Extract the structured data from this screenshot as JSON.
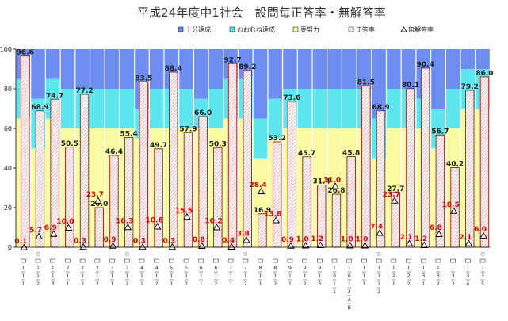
{
  "chart_data": {
    "type": "bar",
    "title": "平成24年度中1社会　設問毎正答率・無解答率",
    "ylim": [
      0,
      100
    ],
    "yticks": [
      0,
      20,
      40,
      60,
      80,
      100
    ],
    "grid": false,
    "legend_position": "top-right",
    "legend": [
      {
        "label": "十分達成",
        "color": "#6d8ef0",
        "symbol": "square"
      },
      {
        "label": "おおむね達成",
        "color": "#5ee6ee",
        "symbol": "square"
      },
      {
        "label": "要努力",
        "color": "#fafaa0",
        "symbol": "square"
      },
      {
        "label": "正答率",
        "color": "#f4c4c4",
        "symbol": "square"
      },
      {
        "label": "無解答率",
        "color": "#ffffff",
        "symbol": "triangle"
      }
    ],
    "bands": {
      "description_colors": {
        "top": "#6d8ef0",
        "middle": "#5ee6ee",
        "bottom": "#fafaa0"
      },
      "boundaries": [
        [
          65,
          85
        ],
        [
          50,
          75
        ],
        [
          65,
          85
        ],
        [
          60,
          80
        ],
        [
          60,
          80
        ],
        [
          60,
          80
        ],
        [
          60,
          80
        ],
        [
          60,
          80
        ],
        [
          55,
          70
        ],
        [
          60,
          80
        ],
        [
          60,
          80
        ],
        [
          60,
          80
        ],
        [
          60,
          75
        ],
        [
          60,
          80
        ],
        [
          65,
          85
        ],
        [
          65,
          85
        ],
        [
          45,
          65
        ],
        [
          55,
          75
        ],
        [
          60,
          80
        ],
        [
          60,
          80
        ],
        [
          60,
          80
        ],
        [
          60,
          80
        ],
        [
          60,
          80
        ],
        [
          60,
          80
        ],
        [
          45,
          65
        ],
        [
          60,
          80
        ],
        [
          60,
          80
        ],
        [
          60,
          75
        ],
        [
          50,
          70
        ],
        [
          60,
          80
        ],
        [
          70,
          90
        ],
        [
          70,
          90
        ]
      ]
    },
    "categories": [
      {
        "marker": "",
        "chars": [
          "1",
          "1",
          "1"
        ]
      },
      {
        "marker": "○",
        "chars": [
          "1",
          "1",
          "2"
        ]
      },
      {
        "marker": "",
        "chars": [
          "1",
          "1",
          "3"
        ]
      },
      {
        "marker": "",
        "chars": [
          "2",
          "1",
          "1"
        ]
      },
      {
        "marker": "",
        "chars": [
          "2",
          "1",
          "2"
        ]
      },
      {
        "marker": "",
        "chars": [
          "2",
          "1",
          "3"
        ]
      },
      {
        "marker": "",
        "chars": [
          "3",
          "1",
          "1"
        ]
      },
      {
        "marker": "○",
        "chars": [
          "3",
          "1",
          "2"
        ]
      },
      {
        "marker": "",
        "chars": [
          "4",
          "1",
          "1"
        ]
      },
      {
        "marker": "",
        "chars": [
          "4",
          "1",
          "2"
        ]
      },
      {
        "marker": "",
        "chars": [
          "5",
          "1",
          "1"
        ]
      },
      {
        "marker": "",
        "chars": [
          "5",
          "1",
          "2"
        ]
      },
      {
        "marker": "",
        "chars": [
          "6",
          "1",
          "1"
        ]
      },
      {
        "marker": "",
        "chars": [
          "6",
          "1",
          "2"
        ]
      },
      {
        "marker": "",
        "chars": [
          "7",
          "1",
          "1"
        ]
      },
      {
        "marker": "○",
        "chars": [
          "7",
          "1",
          "2"
        ]
      },
      {
        "marker": "",
        "chars": [
          "8",
          "1",
          "1"
        ]
      },
      {
        "marker": "",
        "chars": [
          "8",
          "1",
          "2"
        ]
      },
      {
        "marker": "",
        "chars": [
          "9",
          "1",
          "1"
        ]
      },
      {
        "marker": "",
        "chars": [
          "9",
          "1",
          "2"
        ]
      },
      {
        "marker": "",
        "chars": [
          "9",
          "1",
          "3"
        ]
      },
      {
        "marker": "",
        "chars": [
          "1",
          "0",
          "1",
          "1"
        ]
      },
      {
        "marker": "",
        "chars": [
          "1",
          "0",
          "1",
          "2",
          "A",
          "B"
        ]
      },
      {
        "marker": "",
        "chars": [
          "1",
          "1",
          "1"
        ]
      },
      {
        "marker": "○",
        "chars": [
          "1",
          "1",
          "1",
          "2"
        ]
      },
      {
        "marker": "",
        "chars": [
          "1",
          "2",
          "1"
        ]
      },
      {
        "marker": "",
        "chars": [
          "1",
          "2",
          "2"
        ]
      },
      {
        "marker": "",
        "chars": [
          "1",
          "3",
          "1"
        ]
      },
      {
        "marker": "",
        "chars": [
          "1",
          "3",
          "2"
        ]
      },
      {
        "marker": "",
        "chars": [
          "1",
          "3",
          "3"
        ]
      },
      {
        "marker": "",
        "chars": [
          "1",
          "3",
          "4"
        ]
      },
      {
        "marker": "○",
        "chars": [
          "1",
          "3",
          "5"
        ]
      }
    ],
    "series": [
      {
        "name": "正答率",
        "values": [
          96.6,
          68.9,
          74.7,
          50.5,
          77.2,
          20.0,
          46.4,
          55.4,
          83.5,
          49.7,
          88.4,
          57.9,
          66.0,
          50.3,
          92.7,
          89.2,
          16.9,
          53.2,
          73.6,
          45.7,
          31.4,
          26.8,
          45.8,
          81.5,
          68.9,
          27.7,
          80.1,
          90.4,
          56.7,
          40.2,
          79.2,
          86.0
        ]
      },
      {
        "name": "無解答率",
        "values": [
          0.1,
          5.7,
          6.9,
          10.0,
          0.3,
          23.7,
          0.9,
          10.3,
          0.3,
          10.6,
          0.3,
          15.5,
          0.8,
          10.2,
          0.4,
          3.8,
          28.4,
          13.8,
          0.9,
          1.0,
          1.2,
          31.0,
          1.0,
          1.0,
          7.4,
          23.7,
          2.1,
          1.2,
          6.8,
          18.5,
          2.1,
          6.0
        ]
      }
    ]
  }
}
